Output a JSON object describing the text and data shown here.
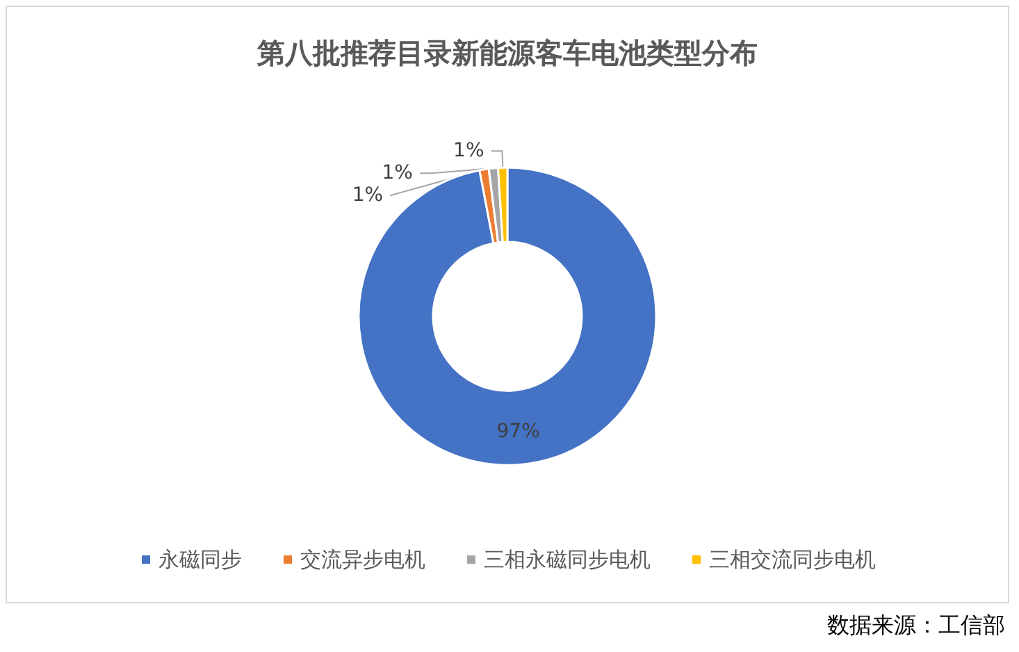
{
  "chart_data": {
    "type": "donut",
    "title": "第八批推荐目录新能源客车电池类型分布",
    "categories": [
      "永磁同步",
      "交流异步电机",
      "三相永磁同步电机",
      "三相交流同步电机"
    ],
    "values": [
      97,
      1,
      1,
      1
    ],
    "value_labels": [
      "97%",
      "1%",
      "1%",
      "1%"
    ],
    "colors": [
      "#4472c4",
      "#ed7d31",
      "#a5a5a5",
      "#ffc000"
    ],
    "legend": "bottom",
    "annotations": [
      "数据来源：工信部"
    ]
  }
}
